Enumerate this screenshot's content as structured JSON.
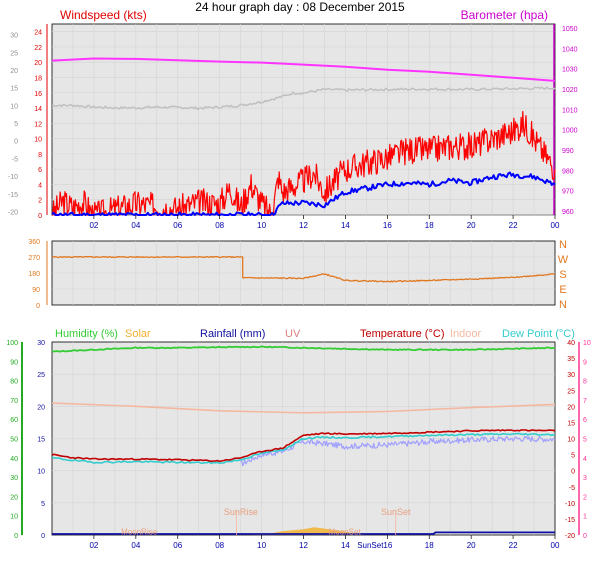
{
  "title": "24 hour graph day : 08 December 2015",
  "hours": [
    "02",
    "04",
    "06",
    "08",
    "10",
    "12",
    "14",
    "16",
    "18",
    "20",
    "22",
    "00"
  ],
  "colors": {
    "wind_speed": "#ff0000",
    "wind_avg": "#0000ff",
    "barometer": "#ff33ff",
    "temp_grey": "#c0c0c0",
    "wind_dir": "#e07820",
    "humidity": "#33cc33",
    "solar": "#f0b030",
    "rainfall": "#1010a0",
    "uv": "#e08080",
    "temperature": "#c00000",
    "indoor": "#f4b8a0",
    "dew_point": "#33cccc",
    "heat_index": "#a0a0ff"
  },
  "chart_data": [
    {
      "type": "line",
      "ylabel_left": "Windspeed (kts)",
      "ylabel_right": "Barometer (hpa)",
      "y_left_ticks": [
        "0",
        "2",
        "4",
        "6",
        "8",
        "10",
        "12",
        "14",
        "16",
        "18",
        "20",
        "22",
        "24"
      ],
      "y_outer_ticks": [
        "-20",
        "-15",
        "-10",
        "-5",
        "0",
        "5",
        "10",
        "15",
        "20",
        "25",
        "30"
      ],
      "y_right_ticks": [
        "960",
        "970",
        "980",
        "990",
        "1000",
        "1010",
        "1020",
        "1030",
        "1040",
        "1050"
      ],
      "ylim_left": [
        0,
        25
      ],
      "ylim_right": [
        958,
        1052
      ],
      "ylim_outer": [
        -21,
        33
      ],
      "series": [
        {
          "key": "barometer",
          "axis": "right",
          "values": [
            [
              0,
              1034
            ],
            [
              2,
              1035
            ],
            [
              4,
              1034.8
            ],
            [
              6,
              1034.2
            ],
            [
              8,
              1033.5
            ],
            [
              10,
              1033
            ],
            [
              12,
              1032
            ],
            [
              14,
              1031
            ],
            [
              16,
              1029.5
            ],
            [
              18,
              1028.5
            ],
            [
              20,
              1027
            ],
            [
              22,
              1025.5
            ],
            [
              24,
              1024
            ]
          ]
        },
        {
          "key": "temp_grey",
          "axis": "outer",
          "values": [
            [
              0,
              10
            ],
            [
              1,
              10
            ],
            [
              2,
              9.5
            ],
            [
              3,
              9.3
            ],
            [
              4,
              9.3
            ],
            [
              5,
              9.5
            ],
            [
              6,
              9.4
            ],
            [
              7,
              9.2
            ],
            [
              8,
              9.5
            ],
            [
              9,
              10
            ],
            [
              10,
              11
            ],
            [
              11,
              12.5
            ],
            [
              11.5,
              13.5
            ],
            [
              12,
              13.5
            ],
            [
              12.5,
              14
            ],
            [
              13,
              14.5
            ],
            [
              14,
              14.3
            ],
            [
              16,
              14.5
            ],
            [
              18,
              14.6
            ],
            [
              20,
              14.5
            ],
            [
              22,
              14.7
            ],
            [
              24,
              14.9
            ]
          ]
        },
        {
          "key": "wind_avg",
          "axis": "left",
          "values": [
            [
              0,
              0
            ],
            [
              10.5,
              0
            ],
            [
              10.8,
              1
            ],
            [
              11,
              1.5
            ],
            [
              12,
              1.6
            ],
            [
              13,
              1.3
            ],
            [
              14,
              3
            ],
            [
              15,
              3.5
            ],
            [
              16,
              4
            ],
            [
              17,
              4.2
            ],
            [
              18,
              4
            ],
            [
              19,
              4.5
            ],
            [
              20,
              4.2
            ],
            [
              21,
              5
            ],
            [
              22,
              5.3
            ],
            [
              23,
              5
            ],
            [
              24,
              4
            ]
          ]
        },
        {
          "key": "wind_speed",
          "axis": "left",
          "values": [
            [
              0,
              0
            ],
            [
              0.5,
              1.8
            ],
            [
              1,
              1
            ],
            [
              1.5,
              1.7
            ],
            [
              2,
              0
            ],
            [
              4,
              1.5
            ],
            [
              6,
              0.8
            ],
            [
              7,
              1.7
            ],
            [
              8,
              1.5
            ],
            [
              8.5,
              3.5
            ],
            [
              9,
              1
            ],
            [
              9.5,
              4
            ],
            [
              10,
              1.5
            ],
            [
              10.5,
              0
            ],
            [
              10.8,
              5
            ],
            [
              11,
              3
            ],
            [
              12,
              4.5
            ],
            [
              12.5,
              5.5
            ],
            [
              13,
              3
            ],
            [
              14,
              6
            ],
            [
              15,
              6.8
            ],
            [
              16,
              7.5
            ],
            [
              17,
              8.5
            ],
            [
              18,
              8.5
            ],
            [
              19,
              9
            ],
            [
              20,
              9
            ],
            [
              21,
              10
            ],
            [
              22,
              11
            ],
            [
              22.5,
              12
            ],
            [
              23,
              10
            ],
            [
              24,
              6
            ]
          ]
        }
      ]
    },
    {
      "type": "line",
      "ylabel_left_ticks": [
        "0",
        "90",
        "180",
        "270",
        "360"
      ],
      "ylabel_right_ticks": [
        "N",
        "E",
        "S",
        "W",
        "N"
      ],
      "ylim": [
        0,
        360
      ],
      "series": [
        {
          "key": "wind_dir",
          "values": [
            [
              0,
              270
            ],
            [
              9.1,
              270
            ],
            [
              9.1,
              153
            ],
            [
              12,
              150
            ],
            [
              13,
              175
            ],
            [
              14,
              138
            ],
            [
              16,
              132
            ],
            [
              18,
              138
            ],
            [
              20,
              146
            ],
            [
              22,
              155
            ],
            [
              24,
              175
            ]
          ]
        }
      ]
    },
    {
      "type": "line",
      "legend": [
        "Humidity (%)",
        "Solar",
        "Rainfall (mm)",
        "UV",
        "Temperature (°C)",
        "Indoor",
        "Dew Point (°C)"
      ],
      "y_hum_ticks": [
        "0",
        "10",
        "20",
        "30",
        "40",
        "50",
        "60",
        "70",
        "80",
        "90",
        "100"
      ],
      "y_temp_ticks": [
        "0",
        "5",
        "10",
        "15",
        "20",
        "25",
        "30"
      ],
      "y_right_ticks": [
        "-20",
        "-15",
        "-10",
        "-5",
        "0",
        "5",
        "10",
        "15",
        "20",
        "25",
        "30",
        "35",
        "40"
      ],
      "ylim_temp": [
        0,
        30
      ],
      "ylim_hum": [
        0,
        100
      ],
      "annotations": [
        "SunRise",
        "SunSet",
        "MoonRise",
        "MoonSet",
        "SunSet16"
      ],
      "series": [
        {
          "key": "humidity",
          "axis": "hum",
          "values": [
            [
              0,
              95
            ],
            [
              2,
              96
            ],
            [
              4,
              97
            ],
            [
              6,
              97
            ],
            [
              8,
              97.3
            ],
            [
              10,
              97.5
            ],
            [
              12,
              97
            ],
            [
              14,
              96.5
            ],
            [
              16,
              96
            ],
            [
              18,
              96
            ],
            [
              20,
              96
            ],
            [
              22,
              96.5
            ],
            [
              24,
              97
            ]
          ]
        },
        {
          "key": "indoor",
          "axis": "temp",
          "values": [
            [
              0,
              20.5
            ],
            [
              4,
              20
            ],
            [
              8,
              19.3
            ],
            [
              12,
              19
            ],
            [
              16,
              19.2
            ],
            [
              20,
              19.8
            ],
            [
              24,
              20.3
            ]
          ]
        },
        {
          "key": "temperature",
          "axis": "temp",
          "values": [
            [
              0,
              12.5
            ],
            [
              1,
              12
            ],
            [
              2,
              11.8
            ],
            [
              4,
              11.8
            ],
            [
              6,
              11.7
            ],
            [
              8,
              11.5
            ],
            [
              9,
              12
            ],
            [
              10,
              13
            ],
            [
              11,
              13.5
            ],
            [
              12,
              15.5
            ],
            [
              13,
              15.8
            ],
            [
              14,
              15.7
            ],
            [
              16,
              15.8
            ],
            [
              18,
              16
            ],
            [
              20,
              16.2
            ],
            [
              22,
              16.3
            ],
            [
              24,
              16.2
            ]
          ]
        },
        {
          "key": "dew_point",
          "axis": "temp",
          "values": [
            [
              0,
              12
            ],
            [
              1,
              11.6
            ],
            [
              2,
              11.3
            ],
            [
              4,
              11.4
            ],
            [
              6,
              11.3
            ],
            [
              8,
              11.2
            ],
            [
              9,
              11.7
            ],
            [
              10,
              12.7
            ],
            [
              11,
              13.2
            ],
            [
              12,
              15
            ],
            [
              13,
              15.2
            ],
            [
              14,
              15.1
            ],
            [
              16,
              15.3
            ],
            [
              18,
              15.5
            ],
            [
              20,
              15.6
            ],
            [
              22,
              15.7
            ],
            [
              24,
              15.6
            ]
          ]
        },
        {
          "key": "heat_index",
          "axis": "temp",
          "values": [
            [
              9,
              11
            ],
            [
              10,
              12.5
            ],
            [
              11,
              13
            ],
            [
              12,
              14.5
            ],
            [
              13,
              14.2
            ],
            [
              14,
              13.8
            ],
            [
              16,
              14
            ],
            [
              18,
              14.5
            ],
            [
              20,
              14.8
            ],
            [
              22,
              15
            ],
            [
              24,
              14.9
            ]
          ]
        },
        {
          "key": "rainfall",
          "axis": "temp",
          "values": [
            [
              0,
              0.15
            ],
            [
              18.2,
              0.15
            ],
            [
              18.3,
              0.4
            ],
            [
              24,
              0.4
            ]
          ]
        },
        {
          "key": "solar",
          "axis": "temp",
          "values": [
            [
              9.5,
              0
            ],
            [
              10.5,
              0.3
            ],
            [
              11,
              0.6
            ],
            [
              12,
              0.9
            ],
            [
              12.5,
              1.2
            ],
            [
              13,
              1
            ],
            [
              14,
              0.5
            ],
            [
              15,
              0
            ]
          ]
        }
      ]
    }
  ]
}
